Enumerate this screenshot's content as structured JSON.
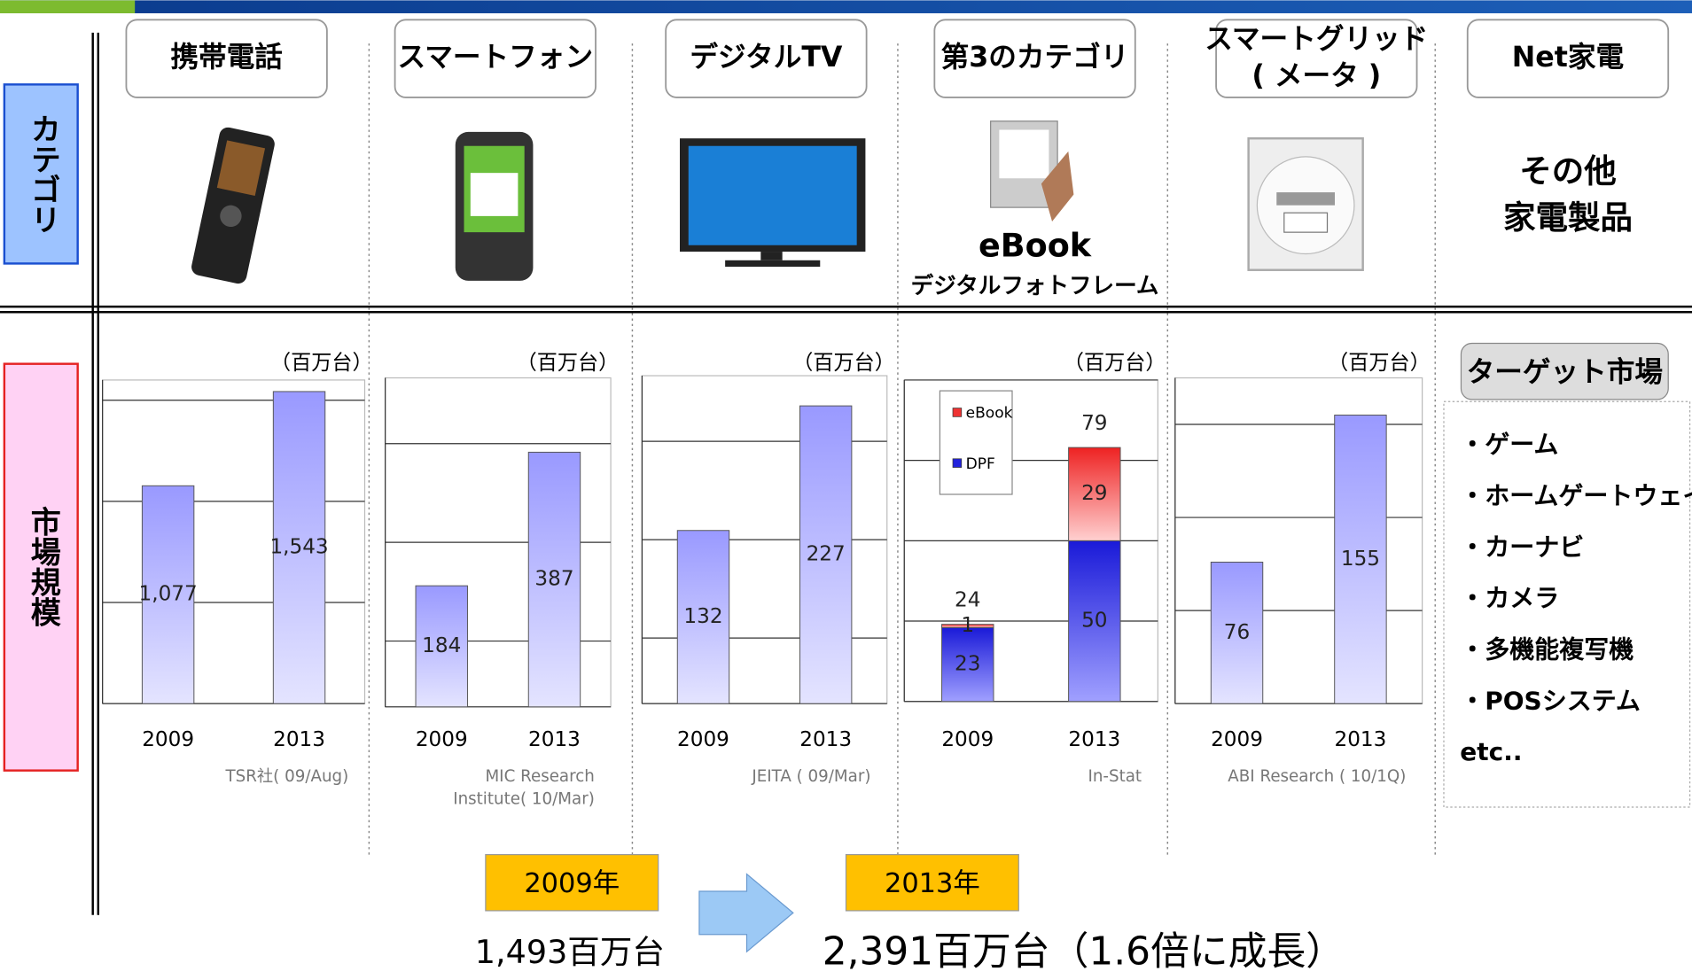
{
  "side_labels": {
    "category": "カテゴリ",
    "market": "市場規模"
  },
  "columns": [
    [
      "携帯電話"
    ],
    [
      "スマートフォン"
    ],
    [
      "デジタルTV"
    ],
    [
      "第3のカテゴリ"
    ],
    [
      "スマートグリッド",
      "( メータ )"
    ],
    [
      "Net家電"
    ]
  ],
  "ebook_labels": [
    "eBook",
    "デジタルフォトフレーム"
  ],
  "other_products": [
    "その他",
    "家電製品"
  ],
  "target": {
    "title": "ターゲット市場",
    "items": [
      "・ゲーム",
      "・ホームゲートウェイ",
      "・カーナビ",
      "・カメラ",
      "・多機能複写機",
      "・POSシステム",
      "etc.."
    ]
  },
  "summary": {
    "from_year": "2009年",
    "to_year": "2013年",
    "from_total": "1,493百万台",
    "to_total": "2,391百万台（1.6倍に成長）"
  },
  "chart_data": [
    {
      "type": "bar",
      "unit": "（百万台）",
      "categories": [
        "2009",
        "2013"
      ],
      "values": [
        1077,
        1543
      ],
      "value_labels": [
        "1,077",
        "1,543"
      ],
      "ylim": [
        0,
        1600
      ],
      "yticks": [
        0,
        500,
        1000,
        1500
      ],
      "grid": true,
      "color": "#9999ff",
      "source": [
        "TSR社( 09/Aug)"
      ]
    },
    {
      "type": "bar",
      "unit": "（百万台）",
      "categories": [
        "2009",
        "2013"
      ],
      "values": [
        184,
        387
      ],
      "ylim": [
        0,
        500
      ],
      "yticks": [
        0,
        100,
        250,
        400
      ],
      "grid": true,
      "color": "#9999ff",
      "source": [
        "MIC Research",
        "Institute( 10/Mar)"
      ]
    },
    {
      "type": "bar",
      "unit": "（百万台）",
      "categories": [
        "2009",
        "2013"
      ],
      "values": [
        132,
        227
      ],
      "ylim": [
        0,
        250
      ],
      "yticks": [
        0,
        50,
        125,
        200
      ],
      "grid": true,
      "color": "#9999ff",
      "source": [
        "JEITA ( 09/Mar)"
      ]
    },
    {
      "type": "stacked_bar",
      "unit": "（百万台）",
      "categories": [
        "2009",
        "2013"
      ],
      "series": [
        {
          "name": "eBook",
          "color": "#ee3333",
          "values": [
            1,
            29
          ]
        },
        {
          "name": "DPF",
          "color": "#2222dd",
          "values": [
            23,
            50
          ]
        }
      ],
      "totals": [
        24,
        79
      ],
      "ylim": [
        0,
        100
      ],
      "yticks": [
        0,
        25,
        50,
        75,
        100
      ],
      "grid": true,
      "source": [
        "In-Stat"
      ]
    },
    {
      "type": "bar",
      "unit": "（百万台）",
      "categories": [
        "2009",
        "2013"
      ],
      "values": [
        76,
        155
      ],
      "ylim": [
        0,
        175
      ],
      "yticks": [
        0,
        50,
        100,
        150
      ],
      "grid": true,
      "color": "#9999ff",
      "source": [
        "ABI Research ( 10/1Q)"
      ]
    }
  ]
}
